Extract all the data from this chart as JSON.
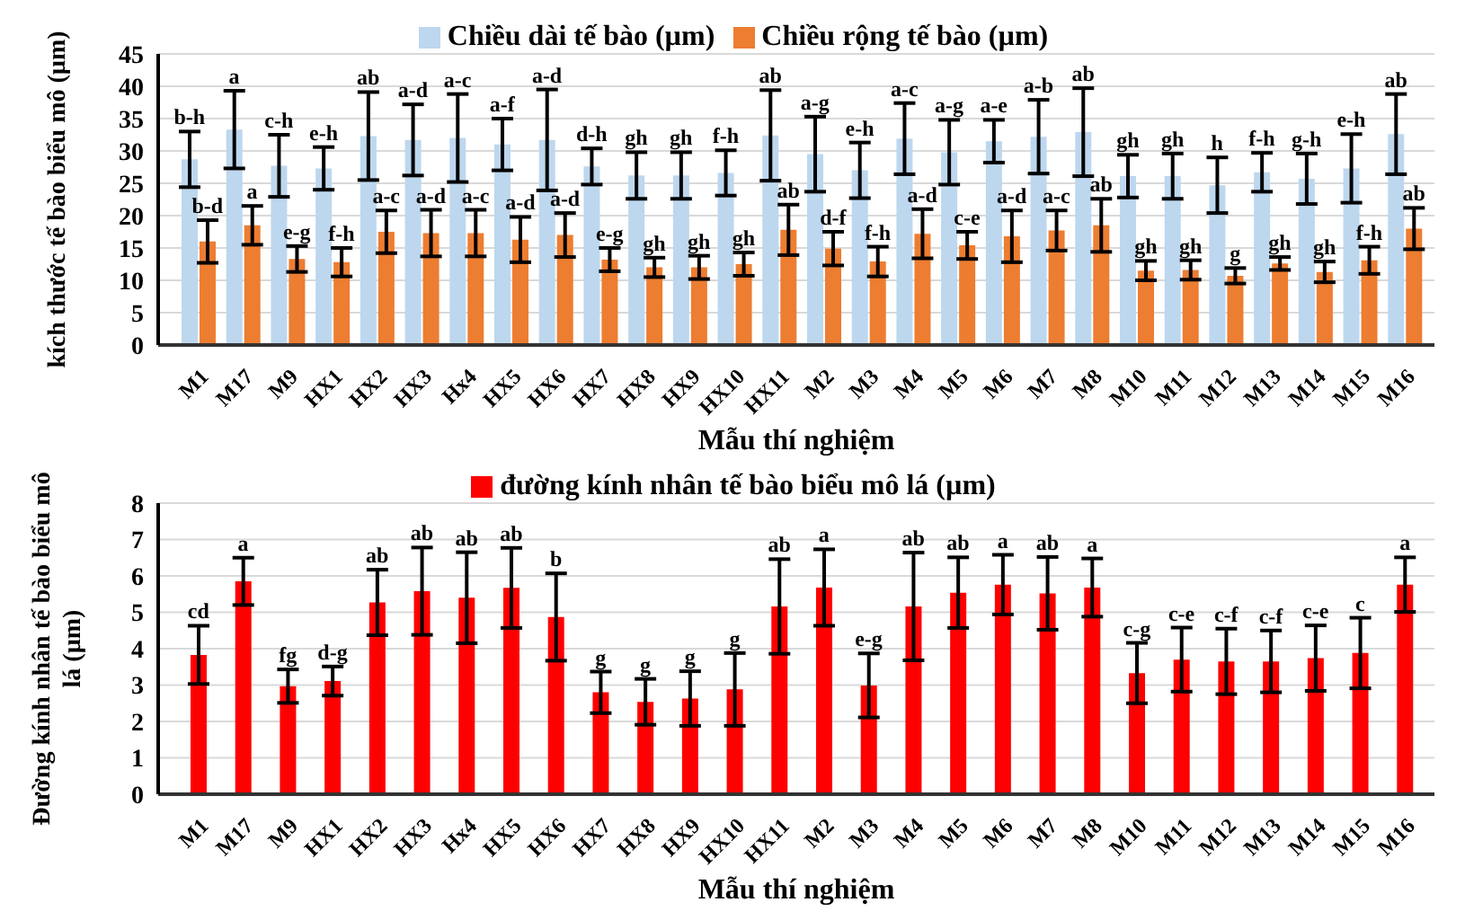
{
  "chart_data": [
    {
      "type": "bar",
      "xlabel": "Mẫu thí nghiệm",
      "ylabel": "kích thước tế bào biểu mô (µm)",
      "categories": [
        "M1",
        "M17",
        "M9",
        "HX1",
        "HX2",
        "HX3",
        "Hx4",
        "HX5",
        "HX6",
        "HX7",
        "HX8",
        "HX9",
        "HX10",
        "HX11",
        "M2",
        "M3",
        "M4",
        "M5",
        "M6",
        "M7",
        "M8",
        "M10",
        "M11",
        "M12",
        "M13",
        "M14",
        "M15",
        "M16"
      ],
      "series": [
        {
          "name": "Chiều dài tế bào (µm)",
          "color": "#bdd7ee",
          "values": [
            28.7,
            33.3,
            27.7,
            27.3,
            32.3,
            31.7,
            32,
            31,
            31.7,
            27.6,
            26.2,
            26.2,
            26.6,
            32.4,
            29.5,
            27,
            31.9,
            29.8,
            31.5,
            32.2,
            32.9,
            26.1,
            26.1,
            24.7,
            26.7,
            25.7,
            27.3,
            32.6
          ],
          "errors": [
            4.3,
            6,
            4.8,
            3.3,
            6.8,
            5.5,
            6.8,
            4,
            7.8,
            2.8,
            3.6,
            3.6,
            3.5,
            7,
            5.8,
            4.3,
            5.5,
            5,
            3.3,
            5.7,
            6.8,
            3.3,
            3.5,
            4.3,
            3,
            3.9,
            5.3,
            6.2
          ]
        },
        {
          "name": "Chiều rộng tế bào (µm)",
          "color": "#ed7d31",
          "values": [
            16,
            18.5,
            13.3,
            12.8,
            17.5,
            17.3,
            17.3,
            16.3,
            17,
            13.2,
            12,
            12,
            12.5,
            17.8,
            14.9,
            12.9,
            17.2,
            15.4,
            16.8,
            17.7,
            18.5,
            11.5,
            11.6,
            10.7,
            12.6,
            11.3,
            13.1,
            18
          ],
          "errors": [
            3.3,
            3,
            2,
            2.2,
            3.3,
            3.6,
            3.6,
            3.5,
            3.4,
            1.8,
            1.5,
            1.8,
            1.8,
            3.9,
            2.6,
            2.3,
            3.8,
            2.1,
            4,
            3.1,
            4.1,
            1.5,
            1.5,
            1.2,
            1,
            1.6,
            2.1,
            3.2
          ]
        }
      ],
      "ylim": [
        0,
        45
      ],
      "yticks": [
        0,
        5,
        10,
        15,
        20,
        25,
        30,
        35,
        40,
        45
      ],
      "grid": "y",
      "legend": "top",
      "annotations": [
        {
          "text": "b-h",
          "x": "M1",
          "y": 33
        },
        {
          "text": "a",
          "x": "M17",
          "y": 39.3
        },
        {
          "text": "c-h",
          "x": "M9",
          "y": 32.5
        },
        {
          "text": "e-h",
          "x": "HX1",
          "y": 30.6
        },
        {
          "text": "ab",
          "x": "HX2",
          "y": 39.1
        },
        {
          "text": "a-d",
          "x": "HX3",
          "y": 37.2
        },
        {
          "text": "a-c",
          "x": "Hx4",
          "y": 38.8
        },
        {
          "text": "a-f",
          "x": "HX5",
          "y": 35
        },
        {
          "text": "a-d",
          "x": "HX6",
          "y": 39.5
        },
        {
          "text": "d-h",
          "x": "HX7",
          "y": 30.4
        },
        {
          "text": "gh",
          "x": "HX8",
          "y": 29.8
        },
        {
          "text": "gh",
          "x": "HX9",
          "y": 29.8
        },
        {
          "text": "f-h",
          "x": "HX10",
          "y": 30.1
        },
        {
          "text": "ab",
          "x": "HX11",
          "y": 39.4
        },
        {
          "text": "a-g",
          "x": "M2",
          "y": 35.3
        },
        {
          "text": "e-h",
          "x": "M3",
          "y": 31.3
        },
        {
          "text": "a-c",
          "x": "M4",
          "y": 37.4
        },
        {
          "text": "a-g",
          "x": "M5",
          "y": 34.8
        },
        {
          "text": "a-e",
          "x": "M6",
          "y": 34.8
        },
        {
          "text": "a-b",
          "x": "M7",
          "y": 37.9
        },
        {
          "text": "ab",
          "x": "M8",
          "y": 39.7
        },
        {
          "text": "gh",
          "x": "M10",
          "y": 29.4
        },
        {
          "text": "gh",
          "x": "M11",
          "y": 29.6
        },
        {
          "text": "h",
          "x": "M12",
          "y": 29
        },
        {
          "text": "f-h",
          "x": "M13",
          "y": 29.7
        },
        {
          "text": "g-h",
          "x": "M14",
          "y": 29.6
        },
        {
          "text": "e-h",
          "x": "M15",
          "y": 32.6
        },
        {
          "text": "ab",
          "x": "M16",
          "y": 38.8
        },
        {
          "text": "b-d",
          "x": "M1",
          "y": 19.3
        },
        {
          "text": "a",
          "x": "M17",
          "y": 21.5
        },
        {
          "text": "e-g",
          "x": "M9",
          "y": 15.3
        },
        {
          "text": "f-h",
          "x": "HX1",
          "y": 15
        },
        {
          "text": "a-c",
          "x": "HX2",
          "y": 20.8
        },
        {
          "text": "a-d",
          "x": "HX3",
          "y": 20.9
        },
        {
          "text": "a-c",
          "x": "Hx4",
          "y": 20.9
        },
        {
          "text": "a-d",
          "x": "HX5",
          "y": 19.8
        },
        {
          "text": "a-d",
          "x": "HX6",
          "y": 20.4
        },
        {
          "text": "e-g",
          "x": "HX7",
          "y": 15
        },
        {
          "text": "gh",
          "x": "HX8",
          "y": 13.5
        },
        {
          "text": "gh",
          "x": "HX9",
          "y": 13.8
        },
        {
          "text": "gh",
          "x": "HX10",
          "y": 14.3
        },
        {
          "text": "ab",
          "x": "HX11",
          "y": 21.7
        },
        {
          "text": "d-f",
          "x": "M2",
          "y": 17.5
        },
        {
          "text": "f-h",
          "x": "M3",
          "y": 15.2
        },
        {
          "text": "a-d",
          "x": "M4",
          "y": 21
        },
        {
          "text": "c-e",
          "x": "M5",
          "y": 17.5
        },
        {
          "text": "a-d",
          "x": "M6",
          "y": 20.8
        },
        {
          "text": "a-c",
          "x": "M7",
          "y": 20.8
        },
        {
          "text": "ab",
          "x": "M8",
          "y": 22.6
        },
        {
          "text": "gh",
          "x": "M10",
          "y": 13
        },
        {
          "text": "gh",
          "x": "M11",
          "y": 13.1
        },
        {
          "text": "g",
          "x": "M12",
          "y": 11.9
        },
        {
          "text": "gh",
          "x": "M13",
          "y": 13.6
        },
        {
          "text": "gh",
          "x": "M14",
          "y": 12.9
        },
        {
          "text": "f-h",
          "x": "M15",
          "y": 15.2
        },
        {
          "text": "ab",
          "x": "M16",
          "y": 21.2
        }
      ]
    },
    {
      "type": "bar",
      "xlabel": "Mẫu thí nghiệm",
      "ylabel": "Đường kính nhân tế bào biểu mô lá (µm)",
      "categories": [
        "M1",
        "M17",
        "M9",
        "HX1",
        "HX2",
        "HX3",
        "Hx4",
        "HX5",
        "HX6",
        "HX7",
        "HX8",
        "HX9",
        "HX10",
        "HX11",
        "M2",
        "M3",
        "M4",
        "M5",
        "M6",
        "M7",
        "M8",
        "M10",
        "M11",
        "M12",
        "M13",
        "M14",
        "M15",
        "M16"
      ],
      "series": [
        {
          "name": "đường kính nhân tế bào biểu mô lá (µm)",
          "color": "#ff0000",
          "values": [
            3.83,
            5.85,
            2.97,
            3.11,
            5.27,
            5.58,
            5.4,
            5.67,
            4.87,
            2.8,
            2.54,
            2.63,
            2.88,
            5.16,
            5.68,
            2.99,
            5.16,
            5.54,
            5.76,
            5.52,
            5.68,
            3.33,
            3.7,
            3.65,
            3.65,
            3.74,
            3.88,
            5.76
          ],
          "errors": [
            0.8,
            0.65,
            0.46,
            0.4,
            0.9,
            1.2,
            1.25,
            1.1,
            1.2,
            0.57,
            0.63,
            0.75,
            1,
            1.3,
            1.05,
            0.88,
            1.48,
            0.97,
            0.82,
            1,
            0.8,
            0.83,
            0.88,
            0.9,
            0.85,
            0.9,
            0.97,
            0.75
          ]
        }
      ],
      "ylim": [
        0,
        8
      ],
      "yticks": [
        0,
        1,
        2,
        3,
        4,
        5,
        6,
        7,
        8
      ],
      "grid": "y",
      "legend": "top",
      "annotations": [
        {
          "text": "cd",
          "x": "M1",
          "y": 4.63
        },
        {
          "text": "a",
          "x": "M17",
          "y": 6.5
        },
        {
          "text": "fg",
          "x": "M9",
          "y": 3.43
        },
        {
          "text": "d-g",
          "x": "HX1",
          "y": 3.51
        },
        {
          "text": "ab",
          "x": "HX2",
          "y": 6.17
        },
        {
          "text": "ab",
          "x": "HX3",
          "y": 6.78
        },
        {
          "text": "ab",
          "x": "Hx4",
          "y": 6.65
        },
        {
          "text": "ab",
          "x": "HX5",
          "y": 6.77
        },
        {
          "text": "b",
          "x": "HX6",
          "y": 6.07
        },
        {
          "text": "g",
          "x": "HX7",
          "y": 3.37
        },
        {
          "text": "g",
          "x": "HX8",
          "y": 3.17
        },
        {
          "text": "g",
          "x": "HX9",
          "y": 3.38
        },
        {
          "text": "g",
          "x": "HX10",
          "y": 3.88
        },
        {
          "text": "ab",
          "x": "HX11",
          "y": 6.46
        },
        {
          "text": "a",
          "x": "M2",
          "y": 6.73
        },
        {
          "text": "e-g",
          "x": "M3",
          "y": 3.87
        },
        {
          "text": "ab",
          "x": "M4",
          "y": 6.64
        },
        {
          "text": "ab",
          "x": "M5",
          "y": 6.51
        },
        {
          "text": "a",
          "x": "M6",
          "y": 6.58
        },
        {
          "text": "ab",
          "x": "M7",
          "y": 6.52
        },
        {
          "text": "a",
          "x": "M8",
          "y": 6.48
        },
        {
          "text": "c-g",
          "x": "M10",
          "y": 4.16
        },
        {
          "text": "c-e",
          "x": "M11",
          "y": 4.58
        },
        {
          "text": "c-f",
          "x": "M12",
          "y": 4.55
        },
        {
          "text": "c-f",
          "x": "M13",
          "y": 4.5
        },
        {
          "text": "c-e",
          "x": "M14",
          "y": 4.64
        },
        {
          "text": "c",
          "x": "M15",
          "y": 4.85
        },
        {
          "text": "a",
          "x": "M16",
          "y": 6.51
        }
      ]
    }
  ]
}
